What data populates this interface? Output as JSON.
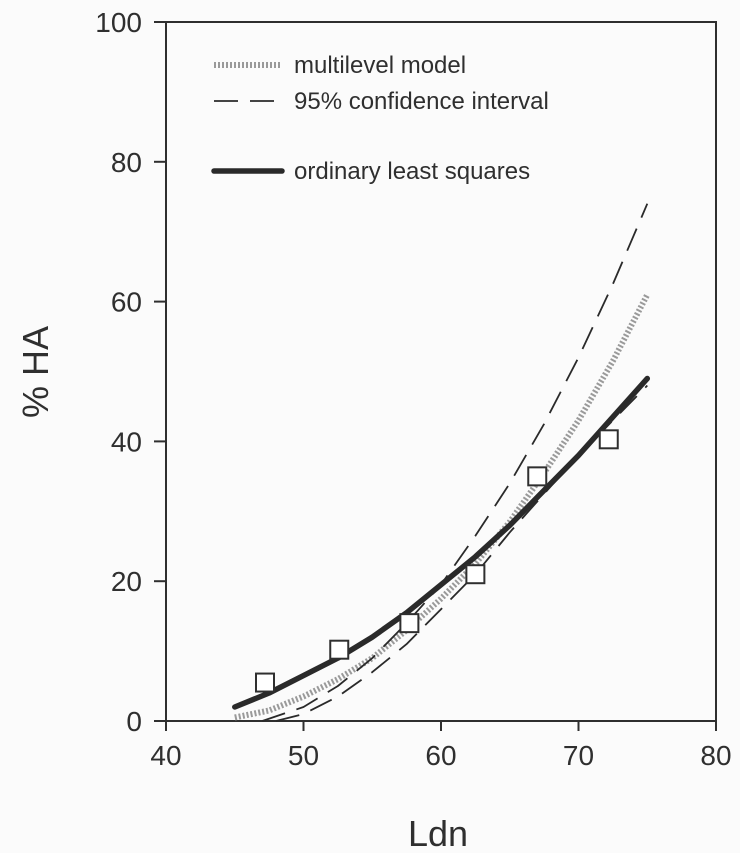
{
  "chart_data": {
    "type": "line",
    "title": "",
    "xlabel": "Ldn",
    "ylabel": "% HA",
    "xlim": [
      40,
      80
    ],
    "ylim": [
      0,
      100
    ],
    "x_ticks": [
      "40",
      "50",
      "60",
      "70",
      "80"
    ],
    "y_ticks": [
      "0",
      "20",
      "40",
      "60",
      "80",
      "100"
    ],
    "grid": false,
    "legend_position": "top-left",
    "series": [
      {
        "name": "multilevel model",
        "style": "dotted-thick",
        "color": "#9a9a9a",
        "x": [
          45,
          47.5,
          50,
          52.5,
          55,
          57.5,
          60,
          62.5,
          65,
          67.5,
          70,
          72.5,
          75
        ],
        "y": [
          0.5,
          1.5,
          3.5,
          6,
          9,
          13,
          17.5,
          22.5,
          28.5,
          35.5,
          43,
          51.5,
          61
        ]
      },
      {
        "name": "95% confidence interval",
        "style": "dashed",
        "color": "#2a2a2a",
        "x": [
          47,
          50,
          52.5,
          55,
          57.5,
          60,
          62.5,
          65,
          67.5,
          70,
          72.5,
          75
        ],
        "y": [
          0,
          2,
          5,
          9,
          14,
          19.5,
          26.5,
          34,
          42.5,
          52,
          62.5,
          74
        ]
      },
      {
        "name": "",
        "style": "dashed",
        "color": "#2a2a2a",
        "x": [
          48,
          50,
          52.5,
          55,
          57.5,
          60,
          62.5,
          65,
          67.5,
          70,
          72.5,
          75
        ],
        "y": [
          0,
          1,
          3.5,
          7,
          11,
          16,
          21,
          27,
          32.5,
          38,
          43,
          48
        ]
      },
      {
        "name": "ordinary least squares",
        "style": "solid-thick",
        "color": "#2a2a2a",
        "x": [
          45,
          47.5,
          50,
          52.5,
          55,
          57.5,
          60,
          62.5,
          65,
          67.5,
          70,
          72.5,
          75
        ],
        "y": [
          2,
          4,
          6.5,
          9,
          12,
          15.5,
          19.5,
          23.5,
          28,
          33,
          38,
          43.5,
          49
        ]
      }
    ],
    "observed_points": {
      "marker": "open-square",
      "x": [
        47.2,
        52.6,
        57.7,
        62.5,
        67,
        72.2
      ],
      "y": [
        5.5,
        10.2,
        14,
        21,
        35,
        40.3
      ]
    }
  }
}
